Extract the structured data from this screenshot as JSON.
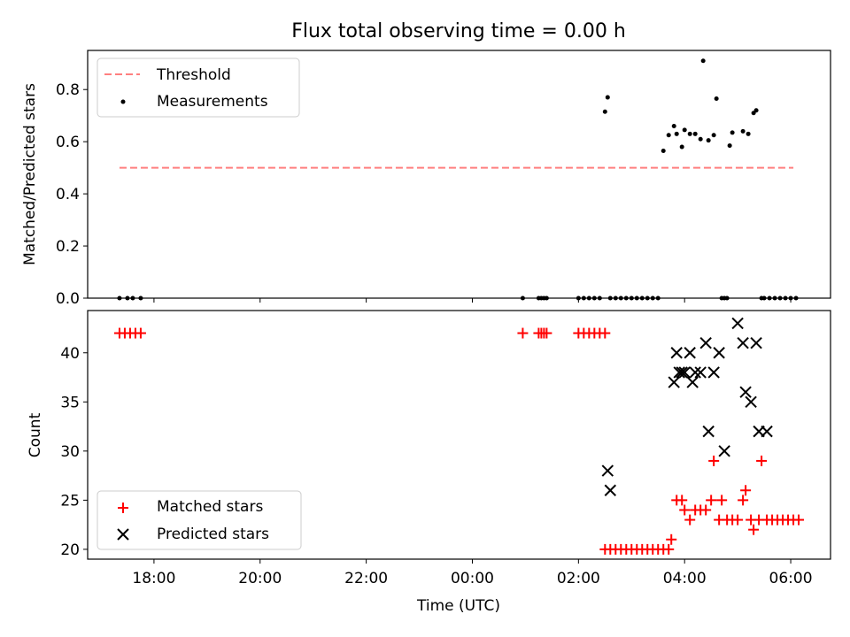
{
  "chart_data": [
    {
      "type": "scatter",
      "title": "Flux total observing time = 0.00 h",
      "ylabel": "Matched/Predicted stars",
      "xlabel": "",
      "ylim": [
        0.0,
        0.95
      ],
      "yticks": [
        0.0,
        0.2,
        0.4,
        0.6,
        0.8
      ],
      "ytick_labels": [
        "0.0",
        "0.2",
        "0.4",
        "0.6",
        "0.8"
      ],
      "legend": {
        "position": "top-left",
        "entries": [
          "Threshold",
          "Measurements"
        ]
      },
      "series": [
        {
          "name": "Threshold",
          "kind": "line",
          "style": "dashed",
          "color": "#ff7f7f",
          "x": [
            17.35,
            30.05
          ],
          "y": [
            0.5,
            0.5
          ]
        },
        {
          "name": "Measurements",
          "kind": "scatter",
          "color": "#000000",
          "x": [
            17.35,
            17.5,
            17.6,
            17.75,
            24.95,
            25.25,
            25.3,
            25.35,
            25.4,
            26.0,
            26.1,
            26.2,
            26.3,
            26.4,
            26.5,
            26.55,
            26.6,
            26.7,
            26.8,
            26.9,
            27.0,
            27.1,
            27.2,
            27.3,
            27.4,
            27.5,
            27.6,
            27.7,
            27.8,
            27.85,
            27.95,
            28.0,
            28.1,
            28.2,
            28.3,
            28.35,
            28.45,
            28.55,
            28.6,
            28.7,
            28.75,
            28.8,
            28.85,
            28.9,
            29.1,
            29.2,
            29.3,
            29.35,
            29.45,
            29.5,
            29.6,
            29.7,
            29.8,
            29.9,
            30.0,
            30.1
          ],
          "y": [
            0,
            0,
            0,
            0,
            0,
            0,
            0,
            0,
            0,
            0,
            0,
            0,
            0,
            0,
            0.715,
            0.77,
            0,
            0,
            0,
            0,
            0,
            0,
            0,
            0,
            0,
            0,
            0.565,
            0.625,
            0.66,
            0.63,
            0.58,
            0.645,
            0.63,
            0.63,
            0.61,
            0.91,
            0.605,
            0.625,
            0.765,
            0,
            0,
            0,
            0.585,
            0.635,
            0.64,
            0.63,
            0.71,
            0.72,
            0,
            0,
            0,
            0,
            0,
            0,
            0,
            0
          ]
        }
      ]
    },
    {
      "type": "scatter",
      "title": "",
      "ylabel": "Count",
      "xlabel": "Time (UTC)",
      "ylim": [
        19,
        44.3
      ],
      "yticks": [
        20,
        25,
        30,
        35,
        40
      ],
      "ytick_labels": [
        "20",
        "25",
        "30",
        "35",
        "40"
      ],
      "xticks": [
        18,
        20,
        22,
        24,
        26,
        28,
        30
      ],
      "xtick_labels": [
        "18:00",
        "20:00",
        "22:00",
        "00:00",
        "02:00",
        "04:00",
        "06:00"
      ],
      "xlim": [
        16.75,
        30.75
      ],
      "legend": {
        "position": "bottom-left",
        "entries": [
          "Matched stars",
          "Predicted stars"
        ]
      },
      "series": [
        {
          "name": "Matched stars",
          "marker": "plus",
          "color": "#ff0000",
          "x": [
            17.35,
            17.45,
            17.55,
            17.65,
            17.75,
            24.95,
            25.25,
            25.3,
            25.35,
            25.4,
            26.0,
            26.1,
            26.2,
            26.3,
            26.4,
            26.5,
            26.5,
            26.6,
            26.7,
            26.8,
            26.9,
            27.0,
            27.1,
            27.2,
            27.3,
            27.4,
            27.5,
            27.6,
            27.7,
            27.75,
            27.85,
            27.95,
            28.0,
            28.1,
            28.2,
            28.3,
            28.4,
            28.5,
            28.55,
            28.65,
            28.7,
            28.8,
            28.9,
            29.0,
            29.1,
            29.15,
            29.25,
            29.3,
            29.4,
            29.45,
            29.55,
            29.65,
            29.75,
            29.85,
            29.95,
            30.05,
            30.15
          ],
          "y": [
            42,
            42,
            42,
            42,
            42,
            42,
            42,
            42,
            42,
            42,
            42,
            42,
            42,
            42,
            42,
            42,
            20,
            20,
            20,
            20,
            20,
            20,
            20,
            20,
            20,
            20,
            20,
            20,
            20,
            21,
            25,
            25,
            24,
            23,
            24,
            24,
            24,
            25,
            29,
            23,
            25,
            23,
            23,
            23,
            25,
            26,
            23,
            22,
            23,
            29,
            23,
            23,
            23,
            23,
            23,
            23,
            23
          ]
        },
        {
          "name": "Predicted stars",
          "marker": "x",
          "color": "#000000",
          "x": [
            26.55,
            26.6,
            27.8,
            27.85,
            27.9,
            27.95,
            28.0,
            28.1,
            28.15,
            28.2,
            28.3,
            28.4,
            28.45,
            28.55,
            28.65,
            28.75,
            29.0,
            29.1,
            29.15,
            29.25,
            29.35,
            29.4,
            29.55
          ],
          "y": [
            28,
            26,
            37,
            40,
            38,
            38,
            38,
            40,
            37,
            38,
            38,
            41,
            32,
            38,
            40,
            30,
            43,
            41,
            36,
            35,
            41,
            32,
            32
          ]
        }
      ]
    }
  ]
}
